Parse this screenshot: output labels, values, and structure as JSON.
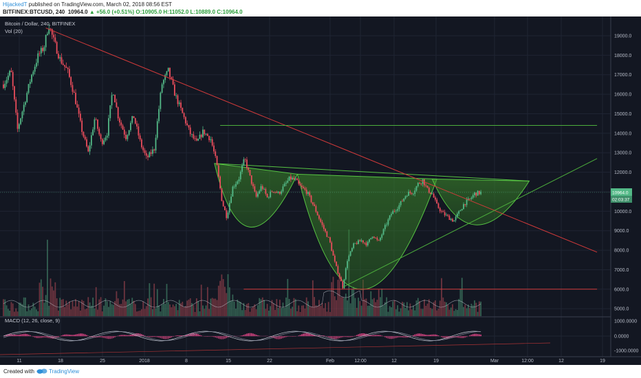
{
  "header": {
    "author": "HijackedT",
    "published_text": " published on TradingView.com, March 02, 2018 08:56 EST",
    "symbol_text": "BITFINEX:BTCUSD, 240",
    "last_value": "10964.0",
    "change_text": "▲ +56.0 (+0.51%)",
    "ohlc": "O:10905.0  H:11052.0  L:10889.0  C:10964.0"
  },
  "footer": {
    "created_with": "Created with",
    "brand": "TradingView"
  },
  "chart_data": {
    "type": "candlestick",
    "title": "Bitcoin / Dollar, 240, BITFINEX",
    "volume_label": "Vol (20)",
    "macd_label": "MACD (12, 26, close, 9)",
    "y_ticks": [
      "19000.0",
      "18000.0",
      "17000.0",
      "16000.0",
      "15000.0",
      "14000.0",
      "13000.0",
      "12000.0",
      "11000.0",
      "10000.0",
      "9000.0",
      "8000.0",
      "7000.0",
      "6000.0",
      "5000.0"
    ],
    "ylim": [
      4600,
      19800
    ],
    "last_price_label": "10964.0",
    "countdown_label": "02:03:37",
    "macd_ticks": [
      "1000.0000",
      "0.0000",
      "-1000.0000"
    ],
    "x_ticks": [
      "11",
      "18",
      "25",
      "2018",
      "8",
      "15",
      "22",
      "Feb",
      "12:00",
      "12",
      "19",
      "Mar",
      "12:00",
      "12",
      "19"
    ],
    "price_path": [
      [
        0,
        16500
      ],
      [
        0.8,
        17200
      ],
      [
        1.5,
        14200
      ],
      [
        2.2,
        15500
      ],
      [
        3,
        17000
      ],
      [
        3.7,
        18000
      ],
      [
        4.3,
        18400
      ],
      [
        4.8,
        19600
      ],
      [
        5.3,
        18800
      ],
      [
        6,
        17800
      ],
      [
        6.8,
        17200
      ],
      [
        7.5,
        16000
      ],
      [
        8.3,
        14200
      ],
      [
        9,
        13000
      ],
      [
        9.7,
        14800
      ],
      [
        10.4,
        13500
      ],
      [
        11,
        14000
      ],
      [
        11.6,
        16300
      ],
      [
        12.2,
        14800
      ],
      [
        13,
        13800
      ],
      [
        13.8,
        14900
      ],
      [
        14.6,
        13400
      ],
      [
        15.2,
        12700
      ],
      [
        16,
        13200
      ],
      [
        16.8,
        16500
      ],
      [
        17.5,
        17200
      ],
      [
        18.2,
        16000
      ],
      [
        19,
        15000
      ],
      [
        19.8,
        14000
      ],
      [
        20.5,
        13500
      ],
      [
        21.2,
        14100
      ],
      [
        22,
        13700
      ],
      [
        22.6,
        12500
      ],
      [
        23.2,
        10500
      ],
      [
        23.7,
        9700
      ],
      [
        24.3,
        11200
      ],
      [
        25,
        11700
      ],
      [
        25.6,
        12700
      ],
      [
        26.2,
        11700
      ],
      [
        26.8,
        10700
      ],
      [
        27.4,
        11300
      ],
      [
        28,
        10700
      ],
      [
        28.6,
        11100
      ],
      [
        29.2,
        10900
      ],
      [
        29.8,
        11300
      ],
      [
        30.4,
        11700
      ],
      [
        31,
        11600
      ],
      [
        31.4,
        11300
      ],
      [
        32.2,
        11000
      ],
      [
        33,
        10200
      ],
      [
        33.8,
        9300
      ],
      [
        34.6,
        8500
      ],
      [
        35.2,
        7300
      ],
      [
        35.7,
        6600
      ],
      [
        36,
        6100
      ],
      [
        36.5,
        7500
      ],
      [
        37.2,
        8300
      ],
      [
        38,
        8500
      ],
      [
        38.6,
        8300
      ],
      [
        39.2,
        8800
      ],
      [
        39.8,
        8400
      ],
      [
        40.5,
        9200
      ],
      [
        41.2,
        9900
      ],
      [
        42,
        10300
      ],
      [
        42.8,
        10900
      ],
      [
        43.5,
        11000
      ],
      [
        44,
        11400
      ],
      [
        44.5,
        11600
      ],
      [
        45,
        11100
      ],
      [
        45.5,
        10900
      ],
      [
        46,
        10300
      ],
      [
        46.6,
        9900
      ],
      [
        47.2,
        9700
      ],
      [
        47.8,
        9500
      ],
      [
        48.3,
        9900
      ],
      [
        48.9,
        10400
      ],
      [
        49.5,
        10600
      ],
      [
        50,
        10900
      ],
      [
        50.7,
        10964
      ]
    ],
    "annotations": [
      {
        "kind": "trendline",
        "color": "#d33a3a",
        "from": [
          4.5,
          19400
        ],
        "to": [
          63,
          7900
        ]
      },
      {
        "kind": "hline",
        "color": "#4caf3c",
        "y": 14400,
        "x_from": 23,
        "x_to": 63
      },
      {
        "kind": "hline",
        "color": "#d33a3a",
        "y": 6000,
        "x_from": 25.5,
        "x_to": 63
      },
      {
        "kind": "trendline",
        "color": "#4caf3c",
        "from": [
          36,
          6100
        ],
        "to": [
          63,
          12700
        ]
      },
      {
        "kind": "pattern",
        "name": "inverse head and shoulders",
        "color": "#3c9e2f"
      }
    ]
  }
}
